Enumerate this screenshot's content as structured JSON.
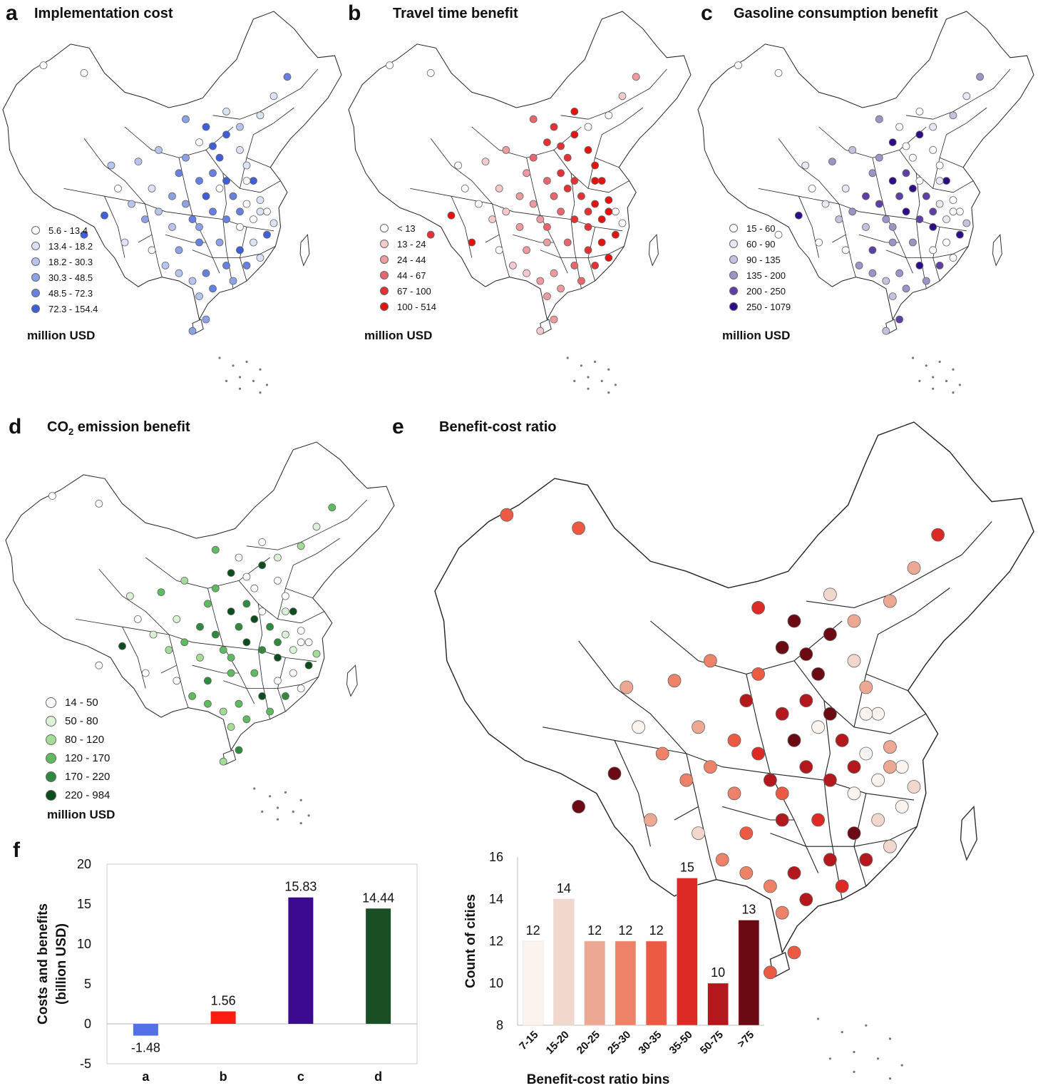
{
  "panels": {
    "a": {
      "label": "a",
      "title": "Implementation cost",
      "unit": "million USD",
      "colors": [
        "#ffffff",
        "#dde3f7",
        "#b7c4ef",
        "#8da1e6",
        "#6580e0",
        "#3e5fd9"
      ],
      "legend": [
        "5.6 - 13.4",
        "13.4 - 18.2",
        "18.2 - 30.3",
        "30.3 - 48.5",
        "48.5 - 72.3",
        "72.3 - 154.4"
      ]
    },
    "b": {
      "label": "b",
      "title": "Travel time benefit",
      "unit": "million USD",
      "colors": [
        "#ffffff",
        "#f6c9cc",
        "#ee9aa0",
        "#e8666d",
        "#e43234",
        "#e3120f"
      ],
      "legend": [
        "< 13",
        "13 - 24",
        "24 - 44",
        "44 - 67",
        "67 - 100",
        "100 - 514"
      ]
    },
    "c": {
      "label": "c",
      "title": "Gasoline consumption benefit",
      "unit": "million USD",
      "colors": [
        "#ffffff",
        "#e9e8f3",
        "#c3c1de",
        "#9a95c6",
        "#5e3fa6",
        "#2e0c88"
      ],
      "legend": [
        "15 - 60",
        "60 - 90",
        "90 - 135",
        "135 - 200",
        "200 - 250",
        "250 - 1079"
      ]
    },
    "d": {
      "label": "d",
      "title_main": "CO",
      "title_sub": "2",
      "title_rest": " emission benefit",
      "unit": "million USD",
      "colors": [
        "#ffffff",
        "#dcf2d6",
        "#a3dc97",
        "#5fbb5f",
        "#2e8b3e",
        "#0b4d1c"
      ],
      "legend": [
        "14 - 50",
        "50 - 80",
        "80 - 120",
        "120 - 170",
        "170 - 220",
        "220 - 984"
      ]
    },
    "e": {
      "label": "e",
      "title": "Benefit-cost ratio",
      "colors": [
        "#fbf3ee",
        "#f2d8cc",
        "#eca893",
        "#ee8268",
        "#ec5a43",
        "#dd2a24",
        "#b3191c",
        "#6b0a12"
      ]
    },
    "f": {
      "label": "f"
    }
  },
  "chart_data": [
    {
      "type": "bar",
      "id": "f",
      "categories": [
        "a",
        "b",
        "c",
        "d"
      ],
      "values": [
        -1.48,
        1.56,
        15.83,
        14.44
      ],
      "value_labels": [
        "-1.48",
        "1.56",
        "15.83",
        "14.44"
      ],
      "colors": [
        "#5470e6",
        "#fc1d12",
        "#3c0a8e",
        "#1a4f23"
      ],
      "ylabel_line1": "Costs and benefits",
      "ylabel_line2": "(billion USD)",
      "ylim": [
        -5,
        20
      ],
      "yticks": [
        -5,
        0,
        5,
        10,
        15,
        20
      ]
    },
    {
      "type": "bar",
      "id": "e-bins",
      "categories": [
        "7-15",
        "15-20",
        "20-25",
        "25-30",
        "30-35",
        "35-50",
        "50-75",
        ">75"
      ],
      "values": [
        12,
        14,
        12,
        12,
        12,
        15,
        10,
        13
      ],
      "colors": [
        "#fbf3ee",
        "#f2d8cc",
        "#eca893",
        "#ee8268",
        "#ec5a43",
        "#dd2a24",
        "#b3191c",
        "#6b0a12"
      ],
      "xlabel": "Benefit-cost ratio bins",
      "ylabel": "Count of cities",
      "ylim": [
        8,
        16
      ],
      "yticks": [
        8,
        10,
        12,
        14,
        16
      ]
    }
  ]
}
